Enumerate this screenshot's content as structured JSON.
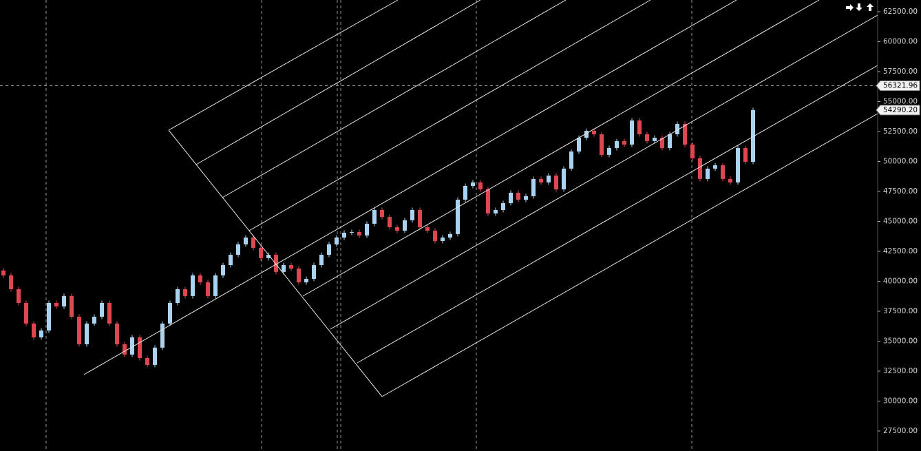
{
  "chart_data": {
    "type": "candlestick",
    "open": [
      40900,
      40490,
      39340,
      38190,
      36470,
      35320,
      35890,
      38190,
      37900,
      38770,
      37040,
      34740,
      36470,
      37040,
      38190,
      36470,
      34740,
      33880,
      35320,
      33590,
      33020,
      34460,
      36470,
      38190,
      39340,
      38770,
      40490,
      39910,
      38770,
      40490,
      41350,
      42210,
      43080,
      43650,
      42790,
      41930,
      42210,
      40780,
      41350,
      41060,
      39910,
      40200,
      41350,
      42210,
      43080,
      43650,
      44050,
      44110,
      43820,
      44800,
      45950,
      45370,
      44510,
      44220,
      45090,
      45950,
      44510,
      44220,
      43360,
      43650,
      43940,
      46810,
      47960,
      48250,
      47670,
      45660,
      45950,
      46520,
      47390,
      46810,
      47100,
      48540,
      48250,
      48820,
      47670,
      49400,
      50830,
      51980,
      52560,
      52270,
      50550,
      51120,
      51700,
      51410,
      53420,
      52270,
      51700,
      51980,
      51120,
      52270,
      53130,
      51410,
      50260,
      48540,
      49400,
      49680,
      48540,
      48250,
      51120,
      49970
    ],
    "high": [
      41100,
      40690,
      39540,
      38390,
      36670,
      36090,
      38390,
      38390,
      38970,
      38970,
      37240,
      36670,
      37240,
      38390,
      38390,
      36670,
      34940,
      35520,
      35520,
      33790,
      34660,
      36670,
      38390,
      39540,
      39540,
      40690,
      40690,
      40110,
      40690,
      41550,
      42410,
      43280,
      43850,
      43850,
      42990,
      42410,
      42410,
      41550,
      41550,
      41260,
      40400,
      41550,
      42410,
      43280,
      43850,
      44250,
      44310,
      44310,
      45000,
      46150,
      46150,
      45570,
      44710,
      45290,
      46150,
      46150,
      44710,
      44420,
      43850,
      44140,
      47010,
      48160,
      48450,
      48450,
      47870,
      46150,
      46720,
      47590,
      47590,
      47300,
      48740,
      48740,
      49020,
      49020,
      49600,
      51030,
      52180,
      52760,
      52760,
      52470,
      51320,
      51900,
      51900,
      53620,
      53620,
      52470,
      52180,
      52180,
      52470,
      53330,
      53330,
      51610,
      50460,
      49600,
      49880,
      49880,
      48740,
      51320,
      51320,
      54490
    ],
    "low": [
      40290,
      39140,
      37990,
      36270,
      35120,
      35120,
      35690,
      37700,
      37700,
      36840,
      34540,
      34540,
      36270,
      36840,
      36270,
      34540,
      33680,
      33680,
      33390,
      32820,
      32820,
      34260,
      36270,
      37990,
      38570,
      38570,
      39710,
      38570,
      38570,
      40290,
      41150,
      42010,
      42880,
      42590,
      41730,
      41730,
      40580,
      40580,
      40860,
      39710,
      39710,
      40000,
      41150,
      42010,
      42880,
      43450,
      43850,
      43620,
      43620,
      44600,
      45170,
      44310,
      44020,
      44020,
      44890,
      44310,
      44020,
      43160,
      43160,
      43450,
      43740,
      46610,
      47760,
      47470,
      45460,
      45460,
      45750,
      46320,
      46610,
      46610,
      46900,
      48050,
      48050,
      47470,
      47470,
      49200,
      50630,
      51780,
      52070,
      50350,
      50350,
      50920,
      51210,
      51210,
      52070,
      51500,
      51500,
      50920,
      50920,
      52070,
      51210,
      50060,
      48340,
      48340,
      49200,
      48340,
      48050,
      48050,
      49770,
      49770
    ],
    "close": [
      40490,
      39340,
      38190,
      36470,
      35320,
      35890,
      38190,
      37900,
      38770,
      37040,
      34740,
      36470,
      37040,
      38190,
      36470,
      34740,
      33880,
      35320,
      33590,
      33020,
      34460,
      36470,
      38190,
      39340,
      38770,
      40490,
      39910,
      38770,
      40490,
      41350,
      42210,
      43080,
      43650,
      42790,
      41930,
      42210,
      40780,
      41350,
      41060,
      39910,
      40200,
      41350,
      42210,
      43080,
      43650,
      44050,
      44110,
      43820,
      44800,
      45950,
      45370,
      44510,
      44220,
      45090,
      45950,
      44510,
      44220,
      43360,
      43650,
      43940,
      46810,
      47960,
      48250,
      47670,
      45660,
      45950,
      46520,
      47390,
      46810,
      47100,
      48540,
      48250,
      48820,
      47670,
      49400,
      50830,
      51980,
      52560,
      52270,
      50550,
      51120,
      51700,
      51410,
      53420,
      52270,
      51700,
      51980,
      51120,
      52270,
      53130,
      51410,
      50260,
      48540,
      49400,
      49680,
      48540,
      48250,
      51120,
      49970,
      54290.2
    ],
    "up_color": "#a9d3f0",
    "down_color": "#e0464f",
    "ylim": [
      25833,
      63477
    ],
    "yticks": [
      {
        "value": 27500,
        "label": "27500.00"
      },
      {
        "value": 30000,
        "label": "30000.00"
      },
      {
        "value": 32500,
        "label": "32500.00"
      },
      {
        "value": 35000,
        "label": "35000.00"
      },
      {
        "value": 37500,
        "label": "37500.00"
      },
      {
        "value": 40000,
        "label": "40000.00"
      },
      {
        "value": 42500,
        "label": "42500.00"
      },
      {
        "value": 45000,
        "label": "45000.00"
      },
      {
        "value": 47500,
        "label": "47500.00"
      },
      {
        "value": 50000,
        "label": "50000.00"
      },
      {
        "value": 52500,
        "label": "52500.00"
      },
      {
        "value": 55000,
        "label": "55000.00"
      },
      {
        "value": 57500,
        "label": "57500.00"
      },
      {
        "value": 60000,
        "label": "60000.00"
      },
      {
        "value": 62500,
        "label": "62500.00"
      }
    ],
    "crosshair": {
      "value": 56321.96,
      "label": "56321.96"
    },
    "last_price": {
      "value": 54290.2,
      "label": "54290.20"
    }
  }
}
